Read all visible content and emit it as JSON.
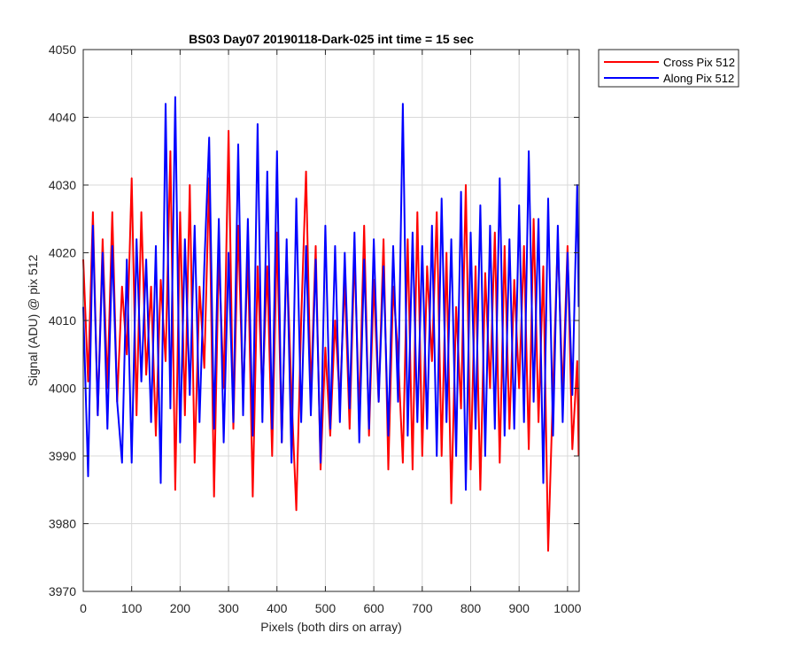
{
  "chart_data": {
    "type": "line",
    "title": "BS03 Day07 20190118-Dark-025 int time = 15 sec",
    "xlabel": "Pixels (both dirs on array)",
    "ylabel": "Signal (ADU) @ pix 512",
    "xlim": [
      0,
      1024
    ],
    "ylim": [
      3970,
      4050
    ],
    "xticks": [
      0,
      100,
      200,
      300,
      400,
      500,
      600,
      700,
      800,
      900,
      1000
    ],
    "yticks": [
      3970,
      3980,
      3990,
      4000,
      4010,
      4020,
      4030,
      4040,
      4050
    ],
    "grid": true,
    "legend_position": "outside-top-right",
    "series": [
      {
        "name": "Cross Pix 512",
        "color": "#ff0000",
        "x": [
          0,
          10,
          20,
          30,
          40,
          50,
          60,
          70,
          80,
          90,
          100,
          110,
          120,
          130,
          140,
          150,
          160,
          170,
          180,
          190,
          200,
          210,
          220,
          230,
          240,
          250,
          260,
          270,
          280,
          290,
          300,
          310,
          320,
          330,
          340,
          350,
          360,
          370,
          380,
          390,
          400,
          410,
          420,
          430,
          440,
          450,
          460,
          470,
          480,
          490,
          500,
          510,
          520,
          530,
          540,
          550,
          560,
          570,
          580,
          590,
          600,
          610,
          620,
          630,
          640,
          650,
          660,
          670,
          680,
          690,
          700,
          710,
          720,
          730,
          740,
          750,
          760,
          770,
          780,
          790,
          800,
          810,
          820,
          830,
          840,
          850,
          860,
          870,
          880,
          890,
          900,
          910,
          920,
          930,
          940,
          950,
          960,
          970,
          980,
          990,
          1000,
          1010,
          1020,
          1023
        ],
        "values": [
          4019,
          4001,
          4026,
          3996,
          4022,
          4000,
          4026,
          3998,
          4015,
          4005,
          4031,
          3996,
          4026,
          4002,
          4015,
          3993,
          4016,
          4004,
          4035,
          3985,
          4026,
          3996,
          4030,
          3989,
          4015,
          4003,
          4031,
          3984,
          4020,
          4000,
          4038,
          3994,
          4024,
          3998,
          4020,
          3984,
          4018,
          3999,
          4018,
          3990,
          4023,
          3992,
          4020,
          3999,
          3982,
          4010,
          4032,
          3999,
          4021,
          3988,
          4006,
          3993,
          4010,
          3998,
          4016,
          3994,
          4020,
          3996,
          4024,
          3993,
          4016,
          3998,
          4022,
          3988,
          4015,
          4005,
          3989,
          4022,
          3988,
          4026,
          3990,
          4018,
          4004,
          4026,
          3990,
          4020,
          3983,
          4012,
          3997,
          4030,
          3988,
          4018,
          3985,
          4017,
          4000,
          4023,
          3989,
          4021,
          3994,
          4016,
          4000,
          4021,
          3991,
          4025,
          3995,
          4018,
          3976,
          4000,
          4022,
          3999,
          4021,
          3991,
          4004,
          3990
        ]
      },
      {
        "name": "Along Pix 512",
        "color": "#0000ff",
        "x": [
          0,
          10,
          20,
          30,
          40,
          50,
          60,
          70,
          80,
          90,
          100,
          110,
          120,
          130,
          140,
          150,
          160,
          170,
          180,
          190,
          200,
          210,
          220,
          230,
          240,
          250,
          260,
          270,
          280,
          290,
          300,
          310,
          320,
          330,
          340,
          350,
          360,
          370,
          380,
          390,
          400,
          410,
          420,
          430,
          440,
          450,
          460,
          470,
          480,
          490,
          500,
          510,
          520,
          530,
          540,
          550,
          560,
          570,
          580,
          590,
          600,
          610,
          620,
          630,
          640,
          650,
          660,
          670,
          680,
          690,
          700,
          710,
          720,
          730,
          740,
          750,
          760,
          770,
          780,
          790,
          800,
          810,
          820,
          830,
          840,
          850,
          860,
          870,
          880,
          890,
          900,
          910,
          920,
          930,
          940,
          950,
          960,
          970,
          980,
          990,
          1000,
          1010,
          1020,
          1023
        ],
        "values": [
          4012,
          3987,
          4024,
          3996,
          4020,
          3994,
          4021,
          3998,
          3989,
          4019,
          3989,
          4022,
          4001,
          4019,
          3995,
          4021,
          3986,
          4042,
          3997,
          4043,
          3992,
          4022,
          3999,
          4024,
          3995,
          4018,
          4037,
          3994,
          4025,
          3992,
          4020,
          3995,
          4036,
          3996,
          4025,
          3993,
          4039,
          3995,
          4032,
          3994,
          4035,
          3992,
          4022,
          3989,
          4028,
          3995,
          4021,
          3996,
          4019,
          3989,
          4024,
          3994,
          4021,
          3995,
          4020,
          3997,
          4023,
          3992,
          4019,
          3994,
          4022,
          3998,
          4018,
          3993,
          4021,
          3998,
          4042,
          3993,
          4023,
          3995,
          4021,
          3994,
          4024,
          3990,
          4028,
          3995,
          4022,
          3990,
          4029,
          3985,
          4023,
          3994,
          4027,
          3990,
          4024,
          3994,
          4031,
          3993,
          4022,
          3994,
          4027,
          3995,
          4035,
          3998,
          4025,
          3986,
          4028,
          3993,
          4024,
          3995,
          4020,
          3999,
          4030,
          4012
        ]
      }
    ]
  }
}
